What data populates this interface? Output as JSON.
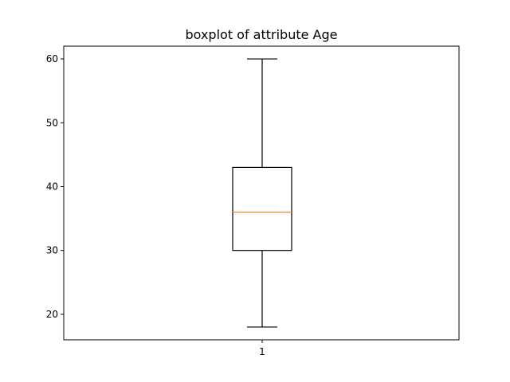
{
  "chart_data": {
    "type": "box",
    "title": "boxplot of attribute Age",
    "xlabel": "",
    "ylabel": "",
    "categories": [
      "1"
    ],
    "boxes": [
      {
        "category": "1",
        "whisker_low": 18,
        "q1": 30,
        "median": 36,
        "q3": 43,
        "whisker_high": 60
      }
    ],
    "y_ticks": [
      20,
      30,
      40,
      50,
      60
    ],
    "ylim": [
      16,
      62
    ],
    "grid": false,
    "colors": {
      "box": "#000000",
      "median": "#ff7f0e",
      "whisker": "#000000"
    }
  }
}
